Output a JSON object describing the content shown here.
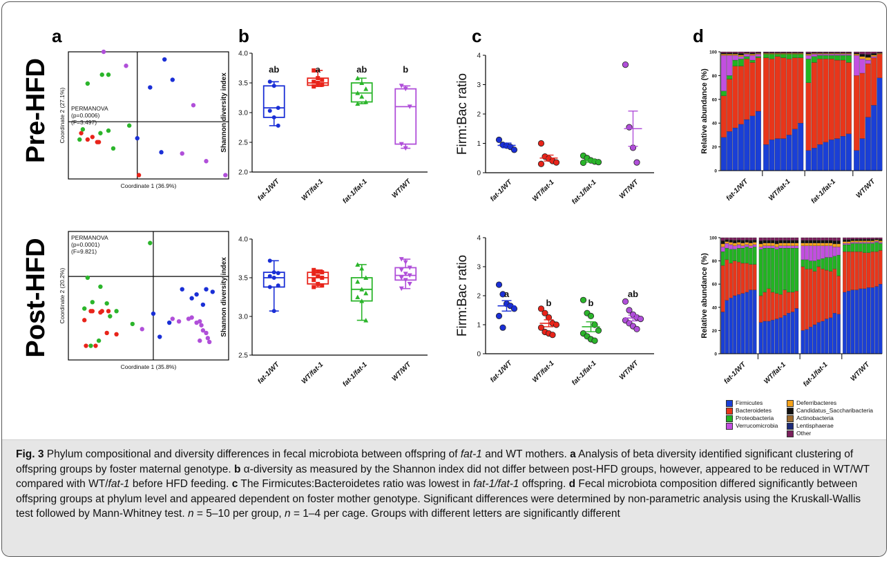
{
  "panels": {
    "a": "a",
    "b": "b",
    "c": "c",
    "d": "d"
  },
  "row_labels": {
    "pre": "Pre-HFD",
    "post": "Post-HFD"
  },
  "groups": [
    "fat-1/WT",
    "WT/fat-1",
    "fat-1/fat-1",
    "WT/WT"
  ],
  "colors": {
    "fat1_WT": "#1a2fd6",
    "WT_fat1": "#e8241a",
    "fat1_fat1": "#2bb52b",
    "WT_WT": "#b04fd9"
  },
  "chart_data": [
    {
      "type": "scatter",
      "id": "pca-pre",
      "xlabel": "Coordinate 1 (36.9%)",
      "ylabel": "Coordinate 2 (27.1%)",
      "annotation": [
        "PERMANOVA",
        "(p=0.0006)",
        "(F=3.497)"
      ],
      "series": [
        {
          "group": "fat-1/WT",
          "points": [
            [
              0.6,
              0.94
            ],
            [
              0.65,
              0.78
            ],
            [
              0.51,
              0.72
            ],
            [
              0.43,
              0.32
            ],
            [
              0.58,
              0.21
            ]
          ]
        },
        {
          "group": "WT/fat-1",
          "points": [
            [
              0.08,
              0.36
            ],
            [
              0.12,
              0.31
            ],
            [
              0.15,
              0.33
            ],
            [
              0.18,
              0.29
            ],
            [
              0.19,
              0.29
            ],
            [
              0.44,
              0.03
            ]
          ]
        },
        {
          "group": "fat-1/fat-1",
          "points": [
            [
              0.12,
              0.75
            ],
            [
              0.21,
              0.82
            ],
            [
              0.25,
              0.82
            ],
            [
              0.09,
              0.39
            ],
            [
              0.07,
              0.31
            ],
            [
              0.2,
              0.36
            ],
            [
              0.25,
              0.38
            ],
            [
              0.28,
              0.24
            ],
            [
              0.38,
              0.42
            ]
          ]
        },
        {
          "group": "WT/WT",
          "points": [
            [
              0.22,
              1.0
            ],
            [
              0.36,
              0.89
            ],
            [
              0.78,
              0.58
            ],
            [
              0.71,
              0.2
            ],
            [
              0.86,
              0.14
            ],
            [
              0.98,
              0.03
            ]
          ]
        }
      ]
    },
    {
      "type": "scatter",
      "id": "pca-post",
      "xlabel": "Coordinate 1 (35.8%)",
      "ylabel": "Coordinate 2 (20.2%)",
      "annotation": [
        "PERMANOVA",
        "(p=0.0001)",
        "(F=9.821)"
      ],
      "series": [
        {
          "group": "fat-1/WT",
          "points": [
            [
              0.77,
              0.48
            ],
            [
              0.8,
              0.51
            ],
            [
              0.84,
              0.43
            ],
            [
              0.86,
              0.55
            ],
            [
              0.9,
              0.53
            ],
            [
              0.71,
              0.55
            ],
            [
              0.63,
              0.29
            ],
            [
              0.53,
              0.36
            ],
            [
              0.57,
              0.18
            ]
          ]
        },
        {
          "group": "WT/fat-1",
          "points": [
            [
              0.15,
              0.38
            ],
            [
              0.14,
              0.38
            ],
            [
              0.2,
              0.37
            ],
            [
              0.21,
              0.38
            ],
            [
              0.25,
              0.38
            ],
            [
              0.1,
              0.31
            ],
            [
              0.11,
              0.11
            ],
            [
              0.17,
              0.11
            ],
            [
              0.24,
              0.21
            ],
            [
              0.3,
              0.2
            ]
          ]
        },
        {
          "group": "fat-1/fat-1",
          "points": [
            [
              0.51,
              0.91
            ],
            [
              0.12,
              0.64
            ],
            [
              0.2,
              0.57
            ],
            [
              0.15,
              0.45
            ],
            [
              0.24,
              0.44
            ],
            [
              0.26,
              0.34
            ],
            [
              0.3,
              0.38
            ],
            [
              0.1,
              0.4
            ],
            [
              0.14,
              0.11
            ],
            [
              0.19,
              0.15
            ],
            [
              0.4,
              0.28
            ]
          ]
        },
        {
          "group": "WT/WT",
          "points": [
            [
              0.65,
              0.32
            ],
            [
              0.69,
              0.3
            ],
            [
              0.75,
              0.32
            ],
            [
              0.8,
              0.29
            ],
            [
              0.82,
              0.3
            ],
            [
              0.83,
              0.27
            ],
            [
              0.84,
              0.23
            ],
            [
              0.86,
              0.21
            ],
            [
              0.87,
              0.17
            ],
            [
              0.88,
              0.14
            ],
            [
              0.82,
              0.15
            ],
            [
              0.77,
              0.33
            ],
            [
              0.46,
              0.24
            ]
          ]
        }
      ]
    },
    {
      "type": "box",
      "id": "shannon-pre",
      "ylabel": "Shannon diversity index",
      "ylim": [
        2.0,
        4.0
      ],
      "yticks": [
        "2.0",
        "2.5",
        "3.0",
        "3.5",
        "4.0"
      ],
      "categories": [
        "fat-1/WT",
        "WT/fat-1",
        "fat-1/fat-1",
        "WT/WT"
      ],
      "letters": [
        "ab",
        "a",
        "ab",
        "b"
      ],
      "boxes": [
        {
          "min": 2.78,
          "q1": 2.92,
          "median": 3.08,
          "q3": 3.45,
          "max": 3.52,
          "points": [
            3.52,
            3.45,
            3.08,
            3.03,
            2.92,
            2.78
          ]
        },
        {
          "min": 3.44,
          "q1": 3.46,
          "median": 3.5,
          "q3": 3.58,
          "max": 3.71,
          "points": [
            3.71,
            3.58,
            3.55,
            3.52,
            3.5,
            3.47,
            3.44
          ]
        },
        {
          "min": 3.15,
          "q1": 3.18,
          "median": 3.33,
          "q3": 3.5,
          "max": 3.58,
          "points": [
            3.58,
            3.5,
            3.4,
            3.33,
            3.27,
            3.18,
            3.15
          ]
        },
        {
          "min": 2.4,
          "q1": 2.47,
          "median": 3.1,
          "q3": 3.4,
          "max": 3.45,
          "points": [
            3.45,
            3.4,
            3.1,
            2.47,
            2.4
          ]
        }
      ]
    },
    {
      "type": "box",
      "id": "shannon-post",
      "ylabel": "Shannon diversity index",
      "ylim": [
        2.5,
        4.0
      ],
      "yticks": [
        "2.5",
        "3.0",
        "3.5",
        "4.0"
      ],
      "categories": [
        "fat-1/WT",
        "WT/fat-1",
        "fat-1/fat-1",
        "WT/WT"
      ],
      "letters": [
        "",
        "",
        "",
        ""
      ],
      "boxes": [
        {
          "min": 3.07,
          "q1": 3.38,
          "median": 3.5,
          "q3": 3.57,
          "max": 3.72,
          "points": [
            3.72,
            3.57,
            3.56,
            3.52,
            3.5,
            3.4,
            3.38,
            3.07
          ]
        },
        {
          "min": 3.38,
          "q1": 3.42,
          "median": 3.5,
          "q3": 3.57,
          "max": 3.6,
          "points": [
            3.6,
            3.58,
            3.57,
            3.55,
            3.52,
            3.5,
            3.47,
            3.42,
            3.4,
            3.38
          ]
        },
        {
          "min": 2.95,
          "q1": 3.2,
          "median": 3.35,
          "q3": 3.5,
          "max": 3.67,
          "points": [
            3.67,
            3.62,
            3.5,
            3.45,
            3.35,
            3.3,
            3.25,
            3.2,
            2.95
          ]
        },
        {
          "min": 3.36,
          "q1": 3.47,
          "median": 3.53,
          "q3": 3.63,
          "max": 3.74,
          "points": [
            3.74,
            3.7,
            3.63,
            3.6,
            3.55,
            3.53,
            3.5,
            3.47,
            3.42,
            3.36
          ]
        }
      ]
    },
    {
      "type": "dot",
      "id": "firmbac-pre",
      "ylabel": "Firm:Bac ratio",
      "ylim": [
        0,
        4
      ],
      "yticks": [
        "0",
        "1",
        "2",
        "3",
        "4"
      ],
      "categories": [
        "fat-1/WT",
        "WT/fat-1",
        "fat-1/fat-1",
        "WT/WT"
      ],
      "letters": [
        "",
        "",
        "",
        ""
      ],
      "groups": [
        {
          "mean": 0.93,
          "sem": 0.08,
          "points": [
            1.12,
            0.95,
            0.92,
            0.88,
            0.78
          ]
        },
        {
          "mean": 0.5,
          "sem": 0.1,
          "points": [
            1.0,
            0.55,
            0.48,
            0.4,
            0.35,
            0.3
          ]
        },
        {
          "mean": 0.41,
          "sem": 0.05,
          "points": [
            0.58,
            0.5,
            0.42,
            0.38,
            0.36,
            0.34
          ]
        },
        {
          "mean": 1.5,
          "sem": 0.6,
          "points": [
            3.68,
            1.55,
            0.85,
            0.35
          ]
        }
      ]
    },
    {
      "type": "dot",
      "id": "firmbac-post",
      "ylabel": "Firm:Bac ratio",
      "ylim": [
        0,
        4
      ],
      "yticks": [
        "0",
        "1",
        "2",
        "3",
        "4"
      ],
      "categories": [
        "fat-1/WT",
        "WT/fat-1",
        "fat-1/fat-1",
        "WT/WT"
      ],
      "letters": [
        "a",
        "b",
        "b",
        "ab"
      ],
      "groups": [
        {
          "mean": 1.65,
          "sem": 0.18,
          "points": [
            2.38,
            2.05,
            1.72,
            1.65,
            1.55,
            1.3,
            0.9
          ]
        },
        {
          "mean": 1.05,
          "sem": 0.12,
          "points": [
            1.55,
            1.4,
            1.25,
            1.05,
            1.0,
            0.9,
            0.75,
            0.7,
            0.65
          ]
        },
        {
          "mean": 0.93,
          "sem": 0.17,
          "points": [
            1.85,
            1.4,
            1.3,
            1.0,
            0.8,
            0.7,
            0.6,
            0.5,
            0.45
          ]
        },
        {
          "mean": 1.23,
          "sem": 0.1,
          "points": [
            1.8,
            1.5,
            1.35,
            1.25,
            1.2,
            1.15,
            1.05,
            0.95,
            0.85
          ]
        }
      ]
    },
    {
      "type": "stacked-bar",
      "id": "abundance-pre",
      "ylabel": "Relative abundance (%)",
      "ylim": [
        0,
        100
      ],
      "yticks": [
        "0",
        "20",
        "40",
        "60",
        "80",
        "100"
      ],
      "categories": [
        "fat-1/WT",
        "WT/fat-1",
        "fat-1/fat-1",
        "WT/WT"
      ],
      "bars_per_group": [
        7,
        7,
        8,
        5
      ],
      "firmicutes": [
        28,
        33,
        36,
        39,
        43,
        46,
        50,
        22,
        26,
        27,
        27,
        30,
        35,
        40,
        17,
        19,
        22,
        24,
        26,
        27,
        29,
        31,
        17,
        27,
        45,
        55,
        78
      ],
      "bacteroidetes": [
        35,
        44,
        52,
        49,
        51,
        45,
        45,
        73,
        68,
        69,
        68,
        64,
        60,
        55,
        57,
        72,
        72,
        70,
        68,
        66,
        64,
        60,
        63,
        55,
        45,
        40,
        20
      ],
      "verrucomicrobia": [
        30,
        17,
        4,
        2,
        2,
        4,
        2,
        0,
        0,
        0,
        0,
        0,
        0,
        0,
        3,
        2,
        1,
        1,
        1,
        1,
        1,
        1,
        17,
        12,
        3,
        1,
        0
      ],
      "proteobacteria": [
        4,
        3,
        5,
        6,
        2,
        2,
        1,
        3,
        4,
        2,
        3,
        4,
        3,
        3,
        20,
        5,
        3,
        3,
        3,
        4,
        4,
        6,
        0,
        0,
        0,
        0,
        0
      ]
    },
    {
      "type": "stacked-bar",
      "id": "abundance-post",
      "ylabel": "Relative abundance (%)",
      "ylim": [
        0,
        100
      ],
      "yticks": [
        "0",
        "20",
        "40",
        "60",
        "80",
        "100"
      ],
      "categories": [
        "fat-1/WT",
        "WT/fat-1",
        "fat-1/fat-1",
        "WT/WT"
      ],
      "bars_per_group": [
        9,
        10,
        10,
        10
      ],
      "firmicutes": [
        36,
        46,
        48,
        50,
        51,
        52,
        53,
        55,
        55,
        27,
        28,
        28,
        29,
        30,
        31,
        33,
        35,
        36,
        39,
        20,
        21,
        23,
        25,
        27,
        28,
        30,
        31,
        35,
        34,
        53,
        54,
        55,
        55,
        56,
        56,
        57,
        57,
        58,
        60
      ],
      "bacteroidetes": [
        40,
        35,
        30,
        30,
        28,
        26,
        25,
        22,
        22,
        23,
        25,
        28,
        24,
        22,
        20,
        22,
        18,
        17,
        15,
        55,
        52,
        50,
        46,
        48,
        45,
        42,
        40,
        38,
        33,
        35,
        34,
        33,
        33,
        32,
        31,
        30,
        31,
        30,
        29
      ],
      "verrucomicrobia": [
        4,
        4,
        4,
        3,
        3,
        2,
        2,
        2,
        2,
        2,
        2,
        2,
        2,
        2,
        2,
        2,
        2,
        2,
        2,
        12,
        12,
        13,
        13,
        12,
        11,
        10,
        10,
        8,
        7,
        1,
        1,
        1,
        1,
        1,
        1,
        1,
        1,
        1,
        1
      ],
      "proteobacteria": [
        12,
        10,
        12,
        10,
        12,
        13,
        14,
        14,
        15,
        40,
        38,
        35,
        38,
        38,
        40,
        36,
        38,
        38,
        37,
        6,
        8,
        7,
        9,
        6,
        9,
        11,
        12,
        11,
        18,
        6,
        6,
        7,
        7,
        7,
        8,
        8,
        7,
        8,
        6
      ]
    }
  ],
  "legend": {
    "col1": [
      {
        "label": "Firmicutes",
        "color": "#1a3fd6"
      },
      {
        "label": "Bacteroidetes",
        "color": "#e8361a"
      },
      {
        "label": "Proteobacteria",
        "color": "#22b322"
      },
      {
        "label": "Verrucomicrobia",
        "color": "#c24fe0"
      }
    ],
    "col2": [
      {
        "label": "Deferribacteres",
        "color": "#f5a21a"
      },
      {
        "label": "Candidatus_Saccharibacteria",
        "color": "#111111"
      },
      {
        "label": "Actinobacteria",
        "color": "#9c6a2e"
      },
      {
        "label": "Lentisphaerae",
        "color": "#1c2a7a"
      },
      {
        "label": "Other",
        "color": "#7a1f5c"
      }
    ]
  },
  "caption": {
    "fig": "Fig. 3",
    "t1": " Phylum compositional and diversity differences in fecal microbiota between offspring of ",
    "i1": "fat-1",
    "t2": " and WT mothers. ",
    "la": "a",
    "t3": " Analysis of beta diversity identified significant clustering of offspring groups by foster maternal genotype. ",
    "lb": "b",
    "t4": " α-diversity as measured by the Shannon index did not differ between post-HFD groups, however, appeared to be reduced in WT/WT compared with WT/",
    "i2": "fat-1",
    "t5": " before HFD feeding. ",
    "lc": "c",
    "t6": " The Firmicutes:Bacteroidetes ratio was lowest in ",
    "i3": "fat-1/fat-1",
    "t7": " offspring. ",
    "ld": "d",
    "t8": " Fecal microbiota composition differed significantly between offspring groups at phylum level and appeared dependent on foster mother genotype. Significant differences were determined by non-parametric analysis using the Kruskall-Wallis test followed by Mann-Whitney test. ",
    "n1": "n",
    "t9": " = 5–10 per group, ",
    "n2": "n",
    "t10": " = 1–4 per cage. Groups with different letters are significantly different"
  }
}
